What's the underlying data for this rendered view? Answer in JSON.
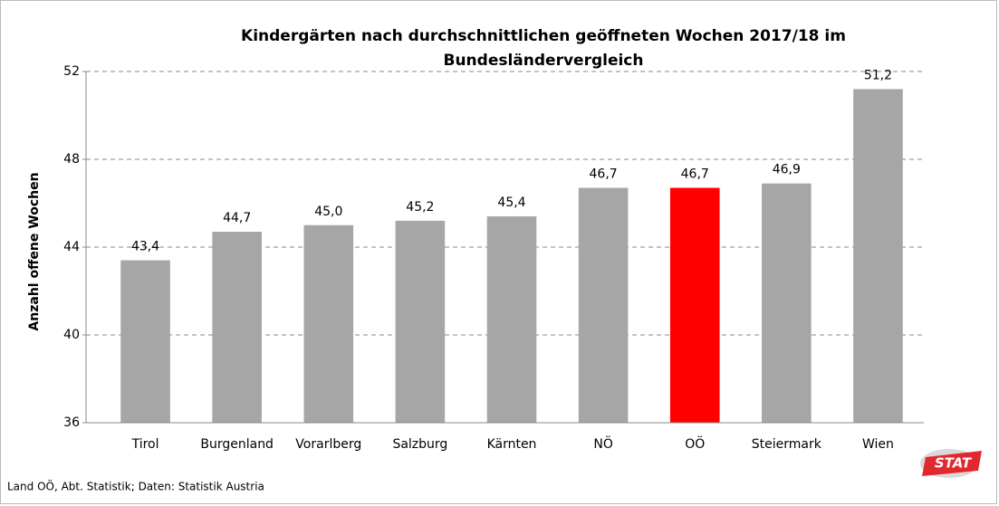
{
  "chart_data": {
    "type": "bar",
    "title": [
      "Kindergärten nach durchschnittlichen geöffneten Wochen 2017/18 im",
      "Bundesländervergleich"
    ],
    "y_label": "Anzahl offene Wochen",
    "categories": [
      "Tirol",
      "Burgenland",
      "Vorarlberg",
      "Salzburg",
      "Kärnten",
      "NÖ",
      "OÖ",
      "Steiermark",
      "Wien"
    ],
    "values": [
      43.4,
      44.7,
      45.0,
      45.2,
      45.4,
      46.7,
      46.7,
      46.9,
      51.2
    ],
    "value_labels": [
      "43,4",
      "44,7",
      "45,0",
      "45,2",
      "45,4",
      "46,7",
      "46,7",
      "46,9",
      "51,2"
    ],
    "colors": [
      "#a6a6a6",
      "#a6a6a6",
      "#a6a6a6",
      "#a6a6a6",
      "#a6a6a6",
      "#a6a6a6",
      "#ff0000",
      "#a6a6a6",
      "#a6a6a6"
    ],
    "ylim": [
      36,
      52
    ],
    "yticks": [
      36,
      40,
      44,
      48,
      52
    ],
    "grid": true,
    "source": "Land OÖ, Abt. Statistik; Daten: Statistik Austria",
    "logo": "STAT"
  }
}
